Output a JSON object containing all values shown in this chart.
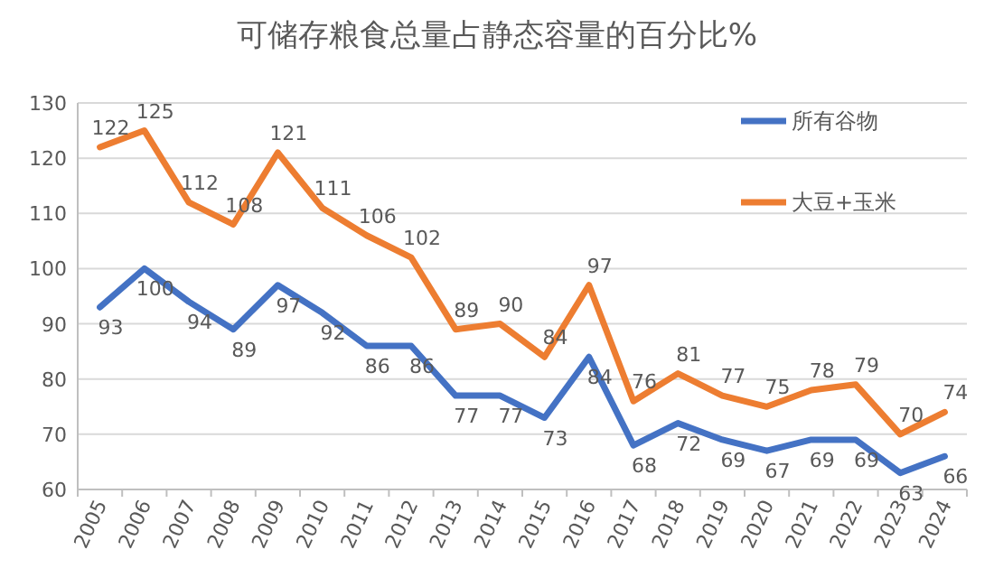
{
  "chart_data": {
    "type": "line",
    "title": "可储存粮食总量占静态容量的百分比%",
    "categories": [
      "2005",
      "2006",
      "2007",
      "2008",
      "2009",
      "2010",
      "2011",
      "2012",
      "2013",
      "2014",
      "2015",
      "2016",
      "2017",
      "2018",
      "2019",
      "2020",
      "2021",
      "2022",
      "2023",
      "2024"
    ],
    "series": [
      {
        "name": "所有谷物",
        "color": "#4472c4",
        "values": [
          93,
          100,
          94,
          89,
          97,
          92,
          86,
          86,
          77,
          77,
          73,
          84,
          68,
          72,
          69,
          67,
          69,
          69,
          63,
          66
        ]
      },
      {
        "name": "大豆+玉米",
        "color": "#ed7d31",
        "values": [
          122,
          125,
          112,
          108,
          121,
          111,
          106,
          102,
          89,
          90,
          84,
          97,
          76,
          81,
          77,
          75,
          78,
          79,
          70,
          74
        ]
      }
    ],
    "ylim": [
      60,
      130
    ],
    "yticks": [
      60,
      70,
      80,
      90,
      100,
      110,
      120,
      130
    ],
    "grid": "y",
    "legend": "top right",
    "data_labels": true,
    "marker": "none",
    "line_style": "solid"
  }
}
